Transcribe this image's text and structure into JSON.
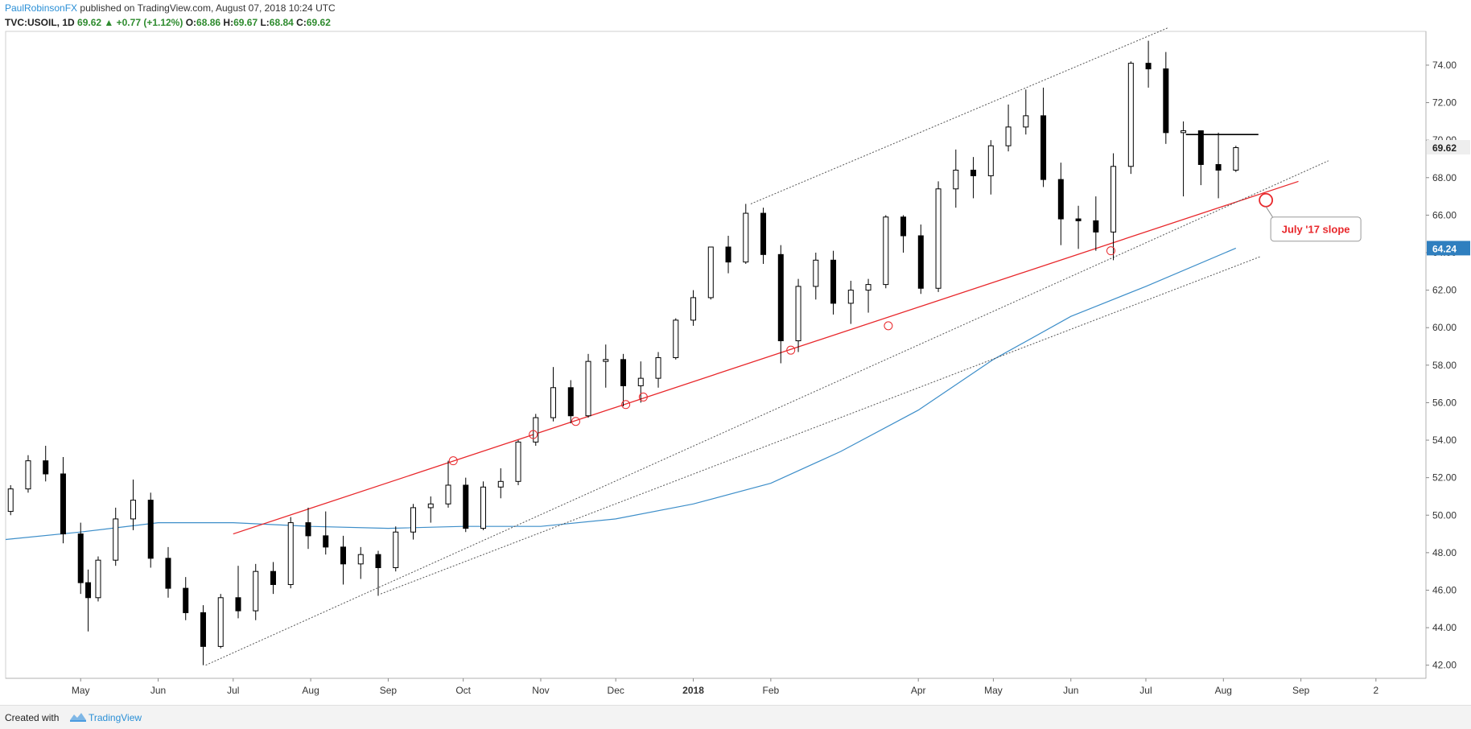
{
  "header": {
    "author": "PaulRobinsonFX",
    "published_text": "published on TradingView.com, August 07, 2018 10:24 UTC",
    "symbol": "TVC:USOIL, 1D",
    "last": "69.62",
    "arrow": "▲",
    "change": "+0.77 (+1.12%)",
    "o_label": "O:",
    "o_value": "68.86",
    "h_label": "H:",
    "h_value": "69.67",
    "l_label": "L:",
    "l_value": "68.84",
    "c_label": "C:",
    "c_value": "69.62"
  },
  "footer": {
    "created_with": "Created with",
    "brand": "TradingView"
  },
  "colors": {
    "up": "#ffffff",
    "down": "#000000",
    "wick": "#000000",
    "ma": "#3d8ec9",
    "trend": "#e8272b",
    "channel": "#555555",
    "resistance": "#000000"
  },
  "chart_data": {
    "type": "candlestick",
    "title": "",
    "y_ticks": [
      "42.00",
      "44.00",
      "46.00",
      "48.00",
      "50.00",
      "52.00",
      "54.00",
      "56.00",
      "58.00",
      "60.00",
      "62.00",
      "64.00",
      "66.00",
      "68.00",
      "70.00",
      "72.00",
      "74.00"
    ],
    "ylim": [
      41.3,
      75.8
    ],
    "x_ticks": [
      "May",
      "Jun",
      "Jul",
      "Aug",
      "Sep",
      "Oct",
      "Nov",
      "Dec",
      "2018",
      "Feb",
      "Apr",
      "May",
      "Jun",
      "Jul",
      "Aug",
      "Sep",
      "2"
    ],
    "x_tick_dates": [
      "2017-05-01",
      "2017-06-01",
      "2017-07-01",
      "2017-08-01",
      "2017-09-01",
      "2017-10-01",
      "2017-11-01",
      "2017-12-01",
      "2018-01-01",
      "2018-02-01",
      "2018-04-01",
      "2018-05-01",
      "2018-06-01",
      "2018-07-01",
      "2018-08-01",
      "2018-09-01",
      "2018-10-01"
    ],
    "x_range": [
      "2017-04-01",
      "2018-10-21"
    ],
    "last_price_label": "69.62",
    "ma_price_label": "64.24",
    "ohlc": [
      [
        "2017-04-03",
        50.2,
        51.6,
        50.0,
        51.4
      ],
      [
        "2017-04-10",
        51.4,
        53.2,
        51.2,
        52.9
      ],
      [
        "2017-04-17",
        52.9,
        53.7,
        51.8,
        52.2
      ],
      [
        "2017-04-24",
        52.2,
        53.1,
        48.5,
        49.0
      ],
      [
        "2017-05-01",
        49.0,
        49.6,
        45.8,
        46.4
      ],
      [
        "2017-05-04",
        46.4,
        47.1,
        43.8,
        45.6
      ],
      [
        "2017-05-08",
        45.6,
        47.8,
        45.4,
        47.6
      ],
      [
        "2017-05-15",
        47.6,
        50.4,
        47.3,
        49.8
      ],
      [
        "2017-05-22",
        49.8,
        51.9,
        49.2,
        50.8
      ],
      [
        "2017-05-29",
        50.8,
        51.2,
        47.2,
        47.7
      ],
      [
        "2017-06-05",
        47.7,
        48.3,
        45.6,
        46.1
      ],
      [
        "2017-06-12",
        46.1,
        46.7,
        44.4,
        44.8
      ],
      [
        "2017-06-19",
        44.8,
        45.2,
        42.0,
        43.0
      ],
      [
        "2017-06-26",
        43.0,
        45.8,
        42.9,
        45.6
      ],
      [
        "2017-07-03",
        45.6,
        47.3,
        44.5,
        44.9
      ],
      [
        "2017-07-10",
        44.9,
        47.4,
        44.4,
        47.0
      ],
      [
        "2017-07-17",
        47.0,
        47.5,
        45.8,
        46.3
      ],
      [
        "2017-07-24",
        46.3,
        49.9,
        46.1,
        49.6
      ],
      [
        "2017-07-31",
        49.6,
        50.4,
        48.2,
        48.9
      ],
      [
        "2017-08-07",
        48.9,
        50.2,
        47.9,
        48.3
      ],
      [
        "2017-08-14",
        48.3,
        48.9,
        46.3,
        47.4
      ],
      [
        "2017-08-21",
        47.4,
        48.3,
        46.6,
        47.9
      ],
      [
        "2017-08-28",
        47.9,
        48.1,
        45.7,
        47.2
      ],
      [
        "2017-09-04",
        47.2,
        49.4,
        47.0,
        49.1
      ],
      [
        "2017-09-11",
        49.1,
        50.6,
        48.7,
        50.4
      ],
      [
        "2017-09-18",
        50.4,
        51.0,
        49.6,
        50.6
      ],
      [
        "2017-09-25",
        50.6,
        52.9,
        50.4,
        51.6
      ],
      [
        "2017-10-02",
        51.6,
        52.0,
        49.1,
        49.3
      ],
      [
        "2017-10-09",
        49.3,
        51.8,
        49.2,
        51.5
      ],
      [
        "2017-10-16",
        51.5,
        52.5,
        50.9,
        51.8
      ],
      [
        "2017-10-23",
        51.8,
        54.0,
        51.6,
        53.9
      ],
      [
        "2017-10-30",
        53.9,
        55.4,
        53.7,
        55.2
      ],
      [
        "2017-11-06",
        55.2,
        57.9,
        55.0,
        56.8
      ],
      [
        "2017-11-13",
        56.8,
        57.2,
        54.9,
        55.3
      ],
      [
        "2017-11-20",
        55.3,
        58.6,
        55.2,
        58.2
      ],
      [
        "2017-11-27",
        58.2,
        59.1,
        56.8,
        58.3
      ],
      [
        "2017-12-04",
        58.3,
        58.6,
        55.8,
        56.9
      ],
      [
        "2017-12-11",
        56.9,
        58.2,
        56.0,
        57.3
      ],
      [
        "2017-12-18",
        57.3,
        58.7,
        56.8,
        58.4
      ],
      [
        "2017-12-25",
        58.4,
        60.5,
        58.3,
        60.4
      ],
      [
        "2018-01-01",
        60.4,
        62.0,
        60.1,
        61.6
      ],
      [
        "2018-01-08",
        61.6,
        64.3,
        61.5,
        64.3
      ],
      [
        "2018-01-15",
        64.3,
        64.9,
        62.9,
        63.5
      ],
      [
        "2018-01-22",
        63.5,
        66.6,
        63.4,
        66.1
      ],
      [
        "2018-01-29",
        66.1,
        66.4,
        63.4,
        63.9
      ],
      [
        "2018-02-05",
        63.9,
        64.4,
        58.1,
        59.3
      ],
      [
        "2018-02-12",
        59.3,
        62.6,
        58.7,
        62.2
      ],
      [
        "2018-02-19",
        62.2,
        64.0,
        61.5,
        63.6
      ],
      [
        "2018-02-26",
        63.6,
        64.1,
        60.7,
        61.3
      ],
      [
        "2018-03-05",
        61.3,
        62.5,
        60.2,
        62.0
      ],
      [
        "2018-03-12",
        62.0,
        62.6,
        60.8,
        62.3
      ],
      [
        "2018-03-19",
        62.3,
        66.0,
        62.1,
        65.9
      ],
      [
        "2018-03-26",
        65.9,
        66.0,
        64.0,
        64.9
      ],
      [
        "2018-04-02",
        64.9,
        65.5,
        61.8,
        62.1
      ],
      [
        "2018-04-09",
        62.1,
        67.8,
        61.9,
        67.4
      ],
      [
        "2018-04-16",
        67.4,
        69.5,
        66.4,
        68.4
      ],
      [
        "2018-04-23",
        68.4,
        69.1,
        66.9,
        68.1
      ],
      [
        "2018-04-30",
        68.1,
        70.0,
        67.1,
        69.7
      ],
      [
        "2018-05-07",
        69.7,
        71.9,
        69.4,
        70.7
      ],
      [
        "2018-05-14",
        70.7,
        72.7,
        70.3,
        71.3
      ],
      [
        "2018-05-21",
        71.3,
        72.8,
        67.5,
        67.9
      ],
      [
        "2018-05-28",
        67.9,
        68.8,
        64.4,
        65.8
      ],
      [
        "2018-06-04",
        65.8,
        66.5,
        64.2,
        65.7
      ],
      [
        "2018-06-11",
        65.7,
        67.0,
        64.1,
        65.1
      ],
      [
        "2018-06-18",
        65.1,
        69.3,
        63.6,
        68.6
      ],
      [
        "2018-06-25",
        68.6,
        74.2,
        68.2,
        74.1
      ],
      [
        "2018-07-02",
        74.1,
        75.3,
        72.8,
        73.8
      ],
      [
        "2018-07-09",
        73.8,
        74.7,
        69.8,
        70.4
      ],
      [
        "2018-07-16",
        70.4,
        71.0,
        67.0,
        70.5
      ],
      [
        "2018-07-23",
        70.5,
        70.3,
        67.6,
        68.7
      ],
      [
        "2018-07-30",
        68.7,
        70.4,
        66.9,
        68.4
      ],
      [
        "2018-08-06",
        68.4,
        69.7,
        68.3,
        69.6
      ]
    ],
    "ma_200": [
      [
        "2017-04-01",
        48.7
      ],
      [
        "2017-05-01",
        49.1
      ],
      [
        "2017-06-01",
        49.6
      ],
      [
        "2017-07-01",
        49.6
      ],
      [
        "2017-08-01",
        49.4
      ],
      [
        "2017-09-01",
        49.3
      ],
      [
        "2017-10-01",
        49.4
      ],
      [
        "2017-11-01",
        49.4
      ],
      [
        "2017-12-01",
        49.8
      ],
      [
        "2018-01-01",
        50.6
      ],
      [
        "2018-02-01",
        51.7
      ],
      [
        "2018-03-01",
        53.4
      ],
      [
        "2018-04-01",
        55.6
      ],
      [
        "2018-05-01",
        58.3
      ],
      [
        "2018-06-01",
        60.6
      ],
      [
        "2018-07-01",
        62.2
      ],
      [
        "2018-08-06",
        64.24
      ]
    ],
    "trendlines": [
      {
        "kind": "trend",
        "from": [
          "2017-07-01",
          49.0
        ],
        "to": [
          "2018-08-31",
          67.8
        ]
      },
      {
        "kind": "channel",
        "from": [
          "2017-06-20",
          42.0
        ],
        "to": [
          "2018-09-12",
          68.9
        ]
      },
      {
        "kind": "channel",
        "from": [
          "2017-08-29",
          45.8
        ],
        "to": [
          "2018-08-16",
          63.8
        ]
      },
      {
        "kind": "channel",
        "from": [
          "2018-01-24",
          66.6
        ],
        "to": [
          "2018-07-10",
          76.0
        ]
      },
      {
        "kind": "resistance",
        "from": [
          "2018-07-17",
          70.3
        ],
        "to": [
          "2018-08-15",
          70.3
        ]
      }
    ],
    "touch_points": [
      [
        "2017-09-27",
        52.9
      ],
      [
        "2017-10-29",
        54.3
      ],
      [
        "2017-11-15",
        55.0
      ],
      [
        "2017-12-05",
        55.9
      ],
      [
        "2017-12-12",
        56.3
      ],
      [
        "2018-02-09",
        58.8
      ],
      [
        "2018-03-20",
        60.1
      ],
      [
        "2018-06-17",
        64.1
      ]
    ],
    "annotation": {
      "text": "July '17 slope",
      "anchor": [
        "2018-08-18",
        66.8
      ]
    }
  }
}
